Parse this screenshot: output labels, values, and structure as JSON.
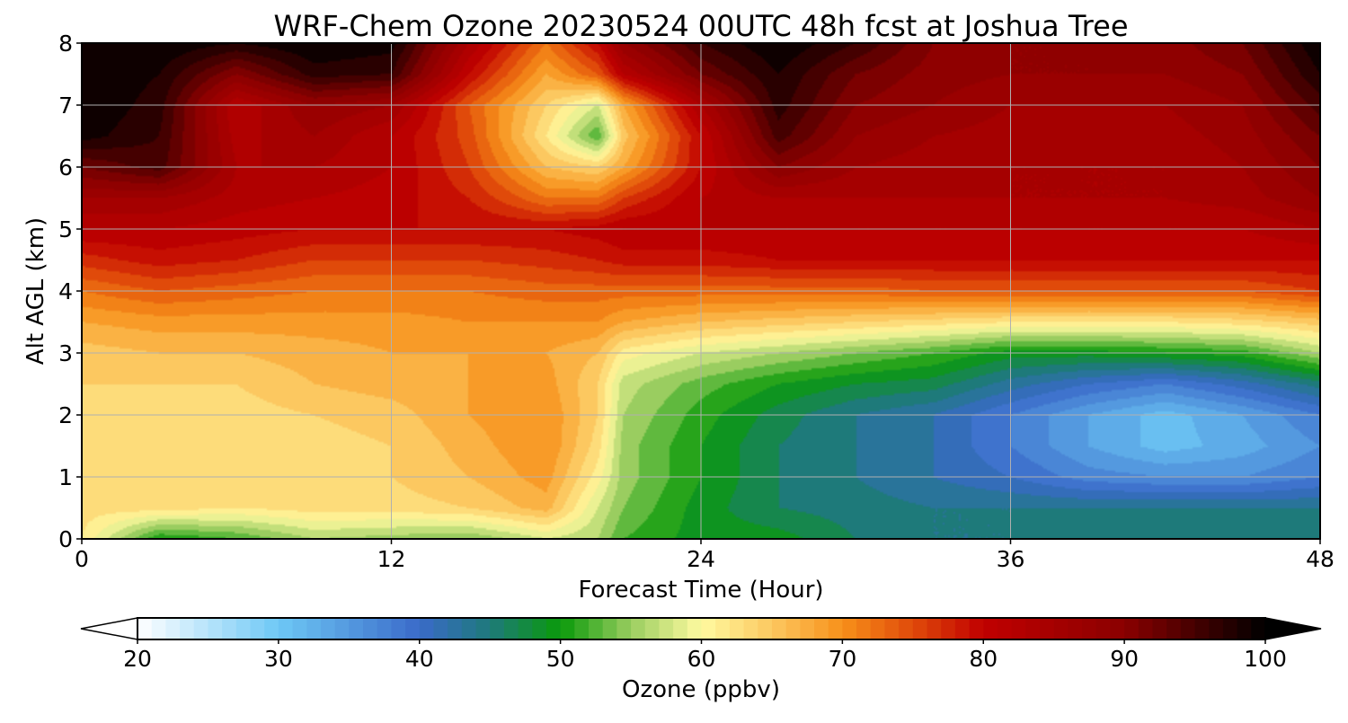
{
  "chart_data": {
    "type": "heatmap",
    "title": "WRF-Chem Ozone  20230524 00UTC 48h fcst at Joshua Tree",
    "xlabel": "Forecast Time (Hour)",
    "ylabel": "Alt AGL (km)",
    "xlim": [
      0,
      48
    ],
    "ylim": [
      0,
      8
    ],
    "xticks": [
      "0",
      "12",
      "24",
      "36",
      "48"
    ],
    "yticks": [
      "0",
      "1",
      "2",
      "3",
      "4",
      "5",
      "6",
      "7",
      "8"
    ],
    "grid": true,
    "colorbar": {
      "label": "Ozone  (ppbv)",
      "range": [
        20,
        100
      ],
      "ticks": [
        "20",
        "30",
        "40",
        "50",
        "60",
        "70",
        "80",
        "90",
        "100"
      ],
      "extend": "both",
      "colormap": [
        {
          "v": 20,
          "c": "#ffffff"
        },
        {
          "v": 30,
          "c": "#6ec8f5"
        },
        {
          "v": 40,
          "c": "#3a6ac9"
        },
        {
          "v": 45,
          "c": "#1e7a7a"
        },
        {
          "v": 50,
          "c": "#0a9a0a"
        },
        {
          "v": 55,
          "c": "#9acd60"
        },
        {
          "v": 60,
          "c": "#fffaa0"
        },
        {
          "v": 65,
          "c": "#fcc860"
        },
        {
          "v": 70,
          "c": "#f7901a"
        },
        {
          "v": 75,
          "c": "#e04a0a"
        },
        {
          "v": 80,
          "c": "#c00000"
        },
        {
          "v": 90,
          "c": "#8a0000"
        },
        {
          "v": 100,
          "c": "#000000"
        }
      ]
    },
    "x": [
      0,
      3,
      6,
      9,
      12,
      15,
      18,
      20,
      21,
      24,
      27,
      30,
      33,
      36,
      39,
      42,
      45,
      48
    ],
    "y": [
      0,
      0.5,
      1,
      1.5,
      2,
      2.5,
      3,
      3.5,
      4,
      4.5,
      5,
      5.5,
      6,
      6.5,
      7,
      7.5,
      8
    ],
    "z": [
      [
        62,
        50,
        52,
        56,
        55,
        54,
        58,
        56,
        52,
        49,
        49,
        46,
        44,
        44,
        46,
        46,
        46,
        46
      ],
      [
        63,
        63,
        62,
        63,
        63,
        64,
        67,
        58,
        54,
        49,
        46,
        45,
        44,
        44,
        44,
        44,
        44,
        44
      ],
      [
        63,
        63,
        62,
        63,
        64,
        66,
        69,
        61,
        55,
        50,
        46,
        44,
        42,
        40,
        37,
        36,
        36,
        38
      ],
      [
        63,
        63,
        62,
        63,
        64,
        67,
        70,
        63,
        55,
        50,
        46,
        44,
        42,
        38,
        34,
        31,
        33,
        36
      ],
      [
        63,
        63,
        63,
        64,
        65,
        68,
        70,
        64,
        56,
        51,
        47,
        44,
        42,
        38,
        34,
        31,
        34,
        38
      ],
      [
        64,
        64,
        64,
        66,
        67,
        68,
        69,
        64,
        57,
        53,
        50,
        48,
        47,
        43,
        40,
        38,
        41,
        45
      ],
      [
        65,
        66,
        66,
        67,
        68,
        68,
        68,
        66,
        61,
        58,
        56,
        54,
        52,
        49,
        49,
        50,
        51,
        56
      ],
      [
        68,
        69,
        69,
        69,
        69,
        70,
        70,
        70,
        68,
        66,
        65,
        64,
        63,
        62,
        62,
        62,
        63,
        65
      ],
      [
        72,
        74,
        73,
        72,
        72,
        72,
        73,
        73,
        73,
        73,
        73,
        73,
        74,
        74,
        74,
        74,
        74,
        76
      ],
      [
        77,
        79,
        78,
        76,
        76,
        76,
        77,
        78,
        79,
        79,
        80,
        80,
        80,
        80,
        80,
        80,
        80,
        80
      ],
      [
        82,
        82,
        81,
        80,
        80,
        80,
        80,
        81,
        82,
        82,
        82,
        82,
        82,
        82,
        82,
        82,
        82,
        84
      ],
      [
        86,
        86,
        83,
        82,
        81,
        78,
        72,
        72,
        76,
        82,
        84,
        84,
        84,
        84,
        84,
        84,
        85,
        88
      ],
      [
        92,
        95,
        84,
        84,
        82,
        76,
        66,
        64,
        68,
        80,
        90,
        86,
        85,
        84,
        84,
        84,
        86,
        90
      ],
      [
        99,
        96,
        83,
        86,
        82,
        75,
        62,
        52,
        65,
        80,
        95,
        88,
        86,
        85,
        85,
        85,
        87,
        92
      ],
      [
        100,
        97,
        82,
        88,
        86,
        74,
        64,
        58,
        68,
        84,
        97,
        90,
        88,
        86,
        86,
        86,
        88,
        95
      ],
      [
        100,
        98,
        90,
        97,
        96,
        80,
        68,
        74,
        82,
        92,
        98,
        92,
        89,
        88,
        88,
        88,
        90,
        98
      ],
      [
        100,
        100,
        98,
        100,
        99,
        84,
        72,
        80,
        88,
        96,
        100,
        96,
        90,
        88,
        88,
        89,
        92,
        100
      ]
    ]
  }
}
